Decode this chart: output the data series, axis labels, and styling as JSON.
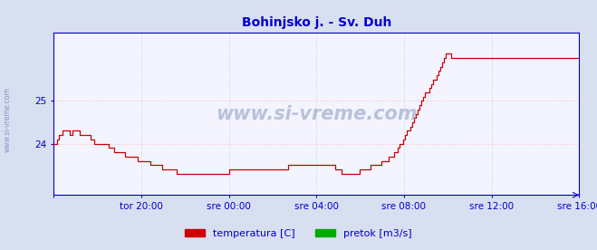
{
  "title": "Bohinjsko j. - Sv. Duh",
  "title_color": "#0000cc",
  "title_fontsize": 10,
  "bg_color": "#d8dff0",
  "plot_bg_color": "#f4f4ff",
  "grid_color_h": "#ffbbbb",
  "grid_color_v": "#ccccdd",
  "line_color": "#cc0000",
  "line_color2": "#00aa00",
  "axis_color": "#0000cc",
  "tick_label_color": "#0000cc",
  "xlim_start": 0,
  "xlim_end": 288,
  "ylim_bottom": 22.8,
  "ylim_top": 26.6,
  "yticks": [
    24,
    25
  ],
  "xtick_positions": [
    0,
    48,
    96,
    144,
    192,
    240,
    288
  ],
  "xtick_labels": [
    "tor 16:00",
    "tor 20:00",
    "sre 00:00",
    "sre 04:00",
    "sre 08:00",
    "sre 12:00",
    "sre 16:00"
  ],
  "watermark": "www.si-vreme.com",
  "legend_labels": [
    "temperatura [C]",
    "pretok [m3/s]"
  ],
  "legend_colors": [
    "#cc0000",
    "#00aa00"
  ],
  "temp_data": [
    24.0,
    24.0,
    24.1,
    24.2,
    24.2,
    24.3,
    24.3,
    24.3,
    24.3,
    24.2,
    24.3,
    24.3,
    24.3,
    24.3,
    24.2,
    24.2,
    24.2,
    24.2,
    24.2,
    24.2,
    24.1,
    24.1,
    24.0,
    24.0,
    24.0,
    24.0,
    24.0,
    24.0,
    24.0,
    24.0,
    23.9,
    23.9,
    23.9,
    23.8,
    23.8,
    23.8,
    23.8,
    23.8,
    23.8,
    23.7,
    23.7,
    23.7,
    23.7,
    23.7,
    23.7,
    23.7,
    23.6,
    23.6,
    23.6,
    23.6,
    23.6,
    23.6,
    23.6,
    23.5,
    23.5,
    23.5,
    23.5,
    23.5,
    23.5,
    23.4,
    23.4,
    23.4,
    23.4,
    23.4,
    23.4,
    23.4,
    23.4,
    23.3,
    23.3,
    23.3,
    23.3,
    23.3,
    23.3,
    23.3,
    23.3,
    23.3,
    23.3,
    23.3,
    23.3,
    23.3,
    23.3,
    23.3,
    23.3,
    23.3,
    23.3,
    23.3,
    23.3,
    23.3,
    23.3,
    23.3,
    23.3,
    23.3,
    23.3,
    23.3,
    23.3,
    23.3,
    23.4,
    23.4,
    23.4,
    23.4,
    23.4,
    23.4,
    23.4,
    23.4,
    23.4,
    23.4,
    23.4,
    23.4,
    23.4,
    23.4,
    23.4,
    23.4,
    23.4,
    23.4,
    23.4,
    23.4,
    23.4,
    23.4,
    23.4,
    23.4,
    23.4,
    23.4,
    23.4,
    23.4,
    23.4,
    23.4,
    23.4,
    23.4,
    23.5,
    23.5,
    23.5,
    23.5,
    23.5,
    23.5,
    23.5,
    23.5,
    23.5,
    23.5,
    23.5,
    23.5,
    23.5,
    23.5,
    23.5,
    23.5,
    23.5,
    23.5,
    23.5,
    23.5,
    23.5,
    23.5,
    23.5,
    23.5,
    23.5,
    23.5,
    23.4,
    23.4,
    23.4,
    23.3,
    23.3,
    23.3,
    23.3,
    23.3,
    23.3,
    23.3,
    23.3,
    23.3,
    23.3,
    23.4,
    23.4,
    23.4,
    23.4,
    23.4,
    23.4,
    23.5,
    23.5,
    23.5,
    23.5,
    23.5,
    23.5,
    23.6,
    23.6,
    23.6,
    23.6,
    23.7,
    23.7,
    23.7,
    23.8,
    23.8,
    23.9,
    24.0,
    24.0,
    24.1,
    24.2,
    24.3,
    24.3,
    24.4,
    24.5,
    24.6,
    24.7,
    24.8,
    24.9,
    25.0,
    25.1,
    25.2,
    25.2,
    25.3,
    25.4,
    25.5,
    25.5,
    25.6,
    25.7,
    25.8,
    25.9,
    26.0,
    26.1,
    26.1,
    26.1,
    26.0,
    26.0,
    26.0,
    26.0,
    26.0,
    26.0,
    26.0,
    26.0,
    26.0,
    26.0,
    26.0,
    26.0,
    26.0,
    26.0,
    26.0,
    26.0,
    26.0,
    26.0,
    26.0,
    26.0,
    26.0,
    26.0,
    26.0,
    26.0,
    26.0,
    26.0,
    26.0,
    26.0,
    26.0,
    26.0,
    26.0,
    26.0,
    26.0,
    26.0,
    26.0,
    26.0,
    26.0,
    26.0,
    26.0,
    26.0,
    26.0,
    26.0,
    26.0,
    26.0,
    26.0,
    26.0,
    26.0,
    26.0,
    26.0,
    26.0,
    26.0,
    26.0,
    26.0,
    26.0,
    26.0,
    26.0,
    26.0,
    26.0,
    26.0,
    26.0,
    26.0,
    26.0,
    26.0,
    26.0,
    26.0,
    26.0,
    26.0,
    26.0,
    26.0,
    26.0,
    26.0
  ]
}
